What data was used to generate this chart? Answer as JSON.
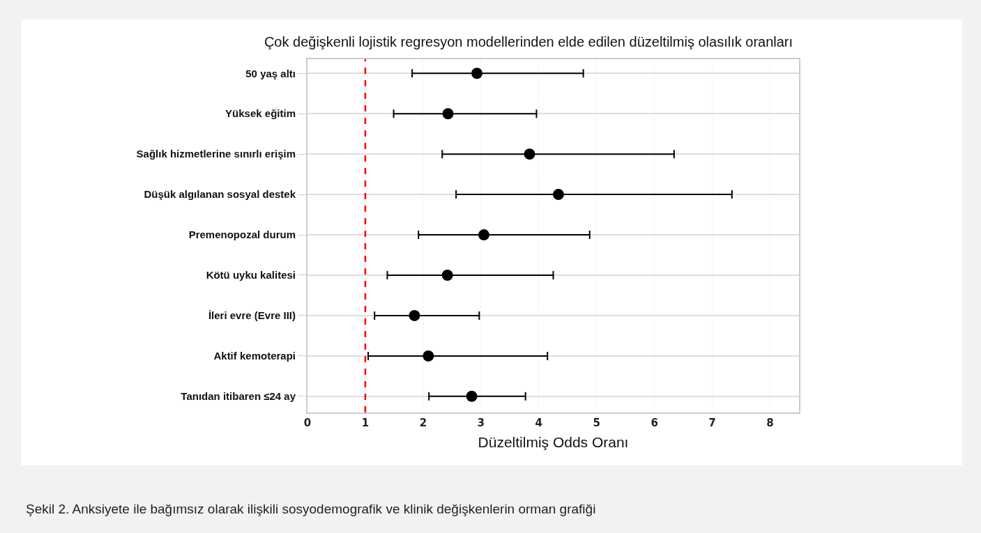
{
  "chart_data": {
    "type": "scatter",
    "title": "Çok değişkenli lojistik regresyon modellerinden elde edilen düzeltilmiş olasılık oranları",
    "xlabel": "Düzeltilmiş Odds Oranı",
    "orientation": "horizontal",
    "categories": [
      "50 yaş altı",
      "Yüksek eğitim",
      "Sağlık hizmetlerine sınırlı erişim",
      "Düşük algılanan sosyal destek",
      "Premenopozal durum",
      "Kötü uyku kalitesi",
      "İleri evre (Evre III)",
      "Aktif kemoterapi",
      "Tanıdan itibaren ≤24 ay"
    ],
    "color": "#000000",
    "values": [
      2.93,
      2.43,
      3.84,
      4.34,
      3.05,
      2.42,
      1.85,
      2.09,
      2.84
    ],
    "errors": [
      [
        1.81,
        4.77
      ],
      [
        1.49,
        3.96
      ],
      [
        2.33,
        6.34
      ],
      [
        2.57,
        7.34
      ],
      [
        1.92,
        4.88
      ],
      [
        1.38,
        4.25
      ],
      [
        1.16,
        2.97
      ],
      [
        1.05,
        4.15
      ],
      [
        2.1,
        3.77
      ]
    ],
    "xlim": [
      0,
      8.5
    ],
    "xticks": [
      0,
      1,
      2,
      3,
      4,
      5,
      6,
      7,
      8
    ],
    "ref_lines": [
      {
        "axis": "x",
        "value": 1,
        "color": "#ff0000",
        "line_style": "dashed"
      }
    ],
    "grid": true,
    "marker": "circle",
    "legend": false,
    "annotations": [
      "Şekil 2. Anksiyete ile bağımsız olarak ilişkili sosyodemografik ve klinik değişkenlerin orman grafiği"
    ]
  }
}
